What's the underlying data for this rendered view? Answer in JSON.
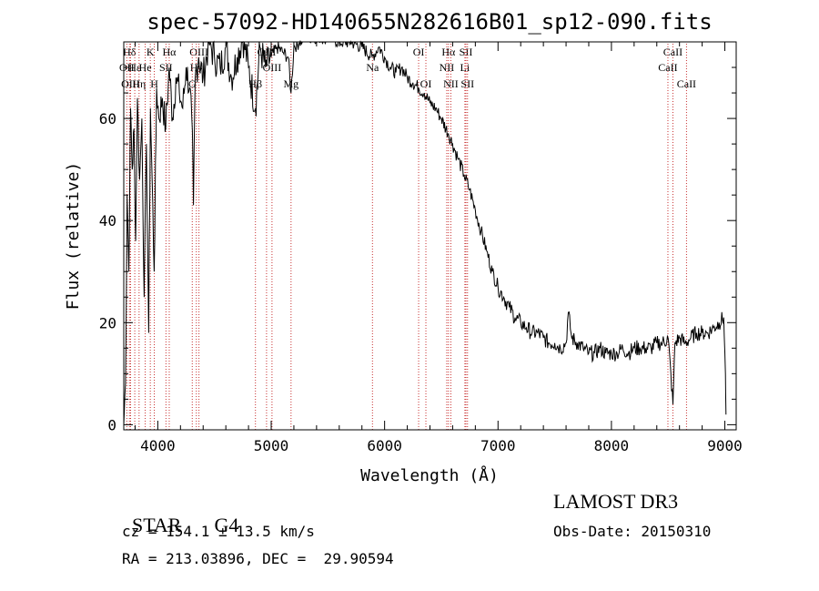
{
  "chart_data": {
    "type": "line",
    "title": "spec-57092-HD140655N282616B01_sp12-090.fits",
    "xlabel": "Wavelength (Å)",
    "ylabel": "Flux (relative)",
    "xlim": [
      3700,
      9100
    ],
    "ylim": [
      -1,
      75
    ],
    "x_ticks": [
      4000,
      5000,
      6000,
      7000,
      8000,
      9000
    ],
    "x_tick_labels": [
      "4000",
      "5000",
      "6000",
      "7000",
      "8000",
      "9000"
    ],
    "y_ticks": [
      0,
      20,
      40,
      60
    ],
    "y_tick_labels": [
      "0",
      "20",
      "40",
      "60"
    ],
    "line_color": "#000000",
    "marker_color": "#c83232",
    "series": [
      {
        "name": "spectrum",
        "x": [
          3700,
          3715,
          3730,
          3745,
          3760,
          3775,
          3790,
          3805,
          3820,
          3840,
          3860,
          3880,
          3900,
          3920,
          3935,
          3950,
          3968,
          3990,
          4010,
          4040,
          4070,
          4101,
          4130,
          4160,
          4190,
          4220,
          4250,
          4280,
          4300,
          4315,
          4330,
          4360,
          4400,
          4450,
          4500,
          4550,
          4600,
          4650,
          4700,
          4750,
          4800,
          4861,
          4900,
          4950,
          5000,
          5050,
          5100,
          5150,
          5175,
          5200,
          5250,
          5300,
          5400,
          5500,
          5600,
          5700,
          5800,
          5890,
          5950,
          6000,
          6050,
          6100,
          6150,
          6200,
          6250,
          6300,
          6350,
          6400,
          6450,
          6500,
          6563,
          6600,
          6650,
          6700,
          6750,
          6800,
          6850,
          6900,
          6950,
          7000,
          7050,
          7100,
          7150,
          7200,
          7250,
          7300,
          7350,
          7400,
          7450,
          7500,
          7550,
          7600,
          7620,
          7650,
          7700,
          7750,
          7800,
          7850,
          7900,
          7950,
          8000,
          8050,
          8100,
          8150,
          8200,
          8250,
          8300,
          8350,
          8400,
          8450,
          8500,
          8542,
          8560,
          8600,
          8650,
          8700,
          8750,
          8800,
          8850,
          8900,
          8950,
          8990,
          9005,
          9010
        ],
        "y": [
          0,
          8,
          45,
          30,
          62,
          50,
          58,
          36,
          64,
          48,
          60,
          25,
          55,
          18,
          62,
          48,
          30,
          66,
          60,
          64,
          58,
          70,
          60,
          68,
          65,
          62,
          70,
          66,
          60,
          43,
          68,
          72,
          68,
          75,
          72,
          70,
          74,
          68,
          72,
          76,
          70,
          62,
          74,
          70,
          72,
          74,
          73,
          72,
          65,
          74,
          75,
          76,
          76,
          76,
          75,
          75,
          74,
          72,
          74,
          72,
          70,
          69,
          70,
          68,
          67,
          66,
          65,
          63,
          62,
          60,
          57,
          55,
          52,
          49,
          46,
          42,
          38,
          34,
          30,
          27,
          25,
          23,
          21,
          20,
          19,
          18,
          18,
          17,
          16,
          16,
          15,
          16,
          22,
          17,
          16,
          15,
          14,
          14,
          15,
          14,
          14,
          14,
          15,
          14,
          15,
          15,
          15,
          15,
          16,
          16,
          17,
          4,
          16,
          17,
          16,
          17,
          18,
          18,
          18,
          19,
          20,
          21,
          10,
          2
        ]
      }
    ],
    "line_markers": [
      {
        "label": "Hδ",
        "wavelength": 3750,
        "row": 1
      },
      {
        "label": "OII",
        "wavelength": 3727,
        "row": 2
      },
      {
        "label": "OIII",
        "wavelength": 3760,
        "row": 3
      },
      {
        "label": "Hε",
        "wavelength": 3797,
        "row": 2
      },
      {
        "label": "Hη",
        "wavelength": 3835,
        "row": 3
      },
      {
        "label": "K",
        "wavelength": 3934,
        "row": 1
      },
      {
        "label": "He",
        "wavelength": 3889,
        "row": 2
      },
      {
        "label": "H",
        "wavelength": 3969,
        "row": 3
      },
      {
        "label": "SII",
        "wavelength": 4072,
        "row": 2
      },
      {
        "label": "Hα",
        "wavelength": 4101,
        "row": 1
      },
      {
        "label": "OIII",
        "wavelength": 4363,
        "row": 1
      },
      {
        "label": "Hγ",
        "wavelength": 4340,
        "row": 2
      },
      {
        "label": "G",
        "wavelength": 4304,
        "row": 3
      },
      {
        "label": "OIII",
        "wavelength": 4959,
        "row": 1
      },
      {
        "label": "OIII",
        "wavelength": 5007,
        "row": 2
      },
      {
        "label": "Hβ",
        "wavelength": 4861,
        "row": 3
      },
      {
        "label": "Mg",
        "wavelength": 5175,
        "row": 3
      },
      {
        "label": "Na",
        "wavelength": 5893,
        "row": 2
      },
      {
        "label": "OI",
        "wavelength": 6300,
        "row": 1
      },
      {
        "label": "OI",
        "wavelength": 6364,
        "row": 3
      },
      {
        "label": "Hα",
        "wavelength": 6563,
        "row": 1
      },
      {
        "label": "NII",
        "wavelength": 6548,
        "row": 2
      },
      {
        "label": "NII",
        "wavelength": 6584,
        "row": 3
      },
      {
        "label": "SII",
        "wavelength": 6717,
        "row": 1
      },
      {
        "label": "Li",
        "wavelength": 6708,
        "row": 2
      },
      {
        "label": "SII",
        "wavelength": 6731,
        "row": 3
      },
      {
        "label": "CaII",
        "wavelength": 8542,
        "row": 1
      },
      {
        "label": "CaII",
        "wavelength": 8498,
        "row": 2
      },
      {
        "label": "CaII",
        "wavelength": 8662,
        "row": 3
      }
    ]
  },
  "info": {
    "class_label": "STAR",
    "subclass": "G4",
    "survey": "LAMOST DR3",
    "redshift_text": "cz = 154.1 ± 13.5 km/s",
    "obs_date": "Obs-Date: 20150310",
    "coords": "RA = 213.03896, DEC =  29.90594"
  }
}
